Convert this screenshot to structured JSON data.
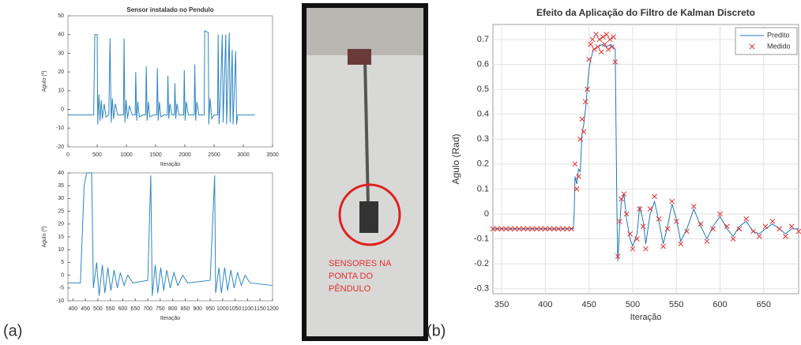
{
  "chart_data": [
    {
      "type": "line",
      "title": "Sensor instalado no Pendulo",
      "xlabel": "Iteração",
      "ylabel": "Agulo (º)",
      "xlim": [
        0,
        3500
      ],
      "xticks": [
        0,
        500,
        1000,
        1500,
        2000,
        2500,
        3000,
        3500
      ],
      "ylim": [
        -20,
        50
      ],
      "yticks": [
        -20,
        -10,
        0,
        10,
        20,
        30,
        40,
        50
      ],
      "grid": false,
      "series": [
        {
          "name": "Sensor",
          "color": "#2e86c1",
          "x": [
            0,
            440,
            460,
            500,
            510,
            530,
            550,
            570,
            590,
            620,
            650,
            700,
            720,
            740,
            760,
            780,
            810,
            850,
            950,
            960,
            975,
            995,
            1020,
            1050,
            1100,
            1150,
            1160,
            1175,
            1195,
            1220,
            1280,
            1330,
            1340,
            1355,
            1375,
            1400,
            1460,
            1520,
            1530,
            1545,
            1565,
            1590,
            1640,
            1700,
            1710,
            1725,
            1745,
            1780,
            1820,
            1830,
            1845,
            1865,
            1900,
            1980,
            1990,
            2005,
            2025,
            2060,
            2160,
            2170,
            2185,
            2205,
            2240,
            2330,
            2340,
            2400,
            2410,
            2430,
            2460,
            2500,
            2560,
            2570,
            2585,
            2605,
            2640,
            2655,
            2700,
            2715,
            2760,
            2775,
            2810,
            2825,
            2870,
            2885,
            2905,
            3200
          ],
          "values": [
            -3,
            -3,
            40,
            40,
            -8,
            8,
            -6,
            5,
            -5,
            3,
            -4,
            -3,
            38,
            -7,
            6,
            -5,
            3,
            -3,
            -3,
            38,
            -7,
            5,
            -5,
            2,
            -3,
            -3,
            20,
            -6,
            4,
            -4,
            -3,
            -3,
            23,
            -6,
            4,
            -4,
            -3,
            -3,
            22,
            -6,
            4,
            -4,
            -3,
            -3,
            18,
            -5,
            3,
            -3,
            -3,
            14,
            -5,
            3,
            -3,
            -3,
            21,
            -6,
            4,
            -3,
            -3,
            24,
            -6,
            4,
            -3,
            -3,
            42,
            41,
            -8,
            6,
            -5,
            -3,
            -3,
            40,
            -8,
            3,
            40,
            -7,
            40,
            -8,
            41,
            -7,
            32,
            -8,
            31,
            -8,
            -3,
            -3
          ]
        }
      ]
    },
    {
      "type": "line",
      "xlabel": "Iteração",
      "ylabel": "Agulo (º)",
      "xlim": [
        380,
        1200
      ],
      "xticks": [
        400,
        450,
        500,
        550,
        600,
        650,
        700,
        750,
        800,
        850,
        900,
        950,
        1000,
        1050,
        1100,
        1150,
        1200
      ],
      "ylim": [
        -10,
        40
      ],
      "yticks": [
        -10,
        -5,
        0,
        5,
        10,
        15,
        20,
        25,
        30,
        35,
        40
      ],
      "grid": false,
      "series": [
        {
          "name": "Sensor",
          "color": "#2e86c1",
          "x": [
            380,
            430,
            445,
            455,
            475,
            482,
            495,
            505,
            518,
            528,
            540,
            552,
            565,
            578,
            590,
            605,
            620,
            640,
            700,
            712,
            718,
            730,
            740,
            752,
            764,
            776,
            790,
            805,
            820,
            840,
            860,
            950,
            968,
            972,
            985,
            995,
            1008,
            1020,
            1033,
            1046,
            1060,
            1075,
            1090,
            1110,
            1200
          ],
          "values": [
            -3,
            -3,
            35,
            40,
            40,
            -5,
            5,
            -8,
            4,
            -7,
            3,
            -6,
            2,
            -5,
            1,
            -4,
            0,
            -3,
            -2,
            39,
            -8,
            4,
            -7,
            3,
            -6,
            2,
            -5,
            1,
            -4,
            0,
            -3,
            -2,
            39,
            -7,
            3,
            -7,
            3,
            -6,
            2,
            -5,
            1,
            -4,
            0,
            -3,
            -4
          ]
        }
      ]
    },
    {
      "type": "line",
      "title": "Efeito da Aplicação do Filtro de Kalman Discreto",
      "xlabel": "Iteração",
      "ylabel": "Agulo (Rad)",
      "xlim": [
        340,
        690
      ],
      "xticks": [
        350,
        400,
        450,
        500,
        550,
        600,
        650
      ],
      "ylim": [
        -0.32,
        0.76
      ],
      "yticks": [
        -0.3,
        -0.2,
        -0.1,
        0,
        0.1,
        0.2,
        0.3,
        0.4,
        0.5,
        0.6,
        0.7
      ],
      "grid": true,
      "legend": "upper right",
      "series": [
        {
          "name": "Predito",
          "color": "#1f77b4",
          "x": [
            340,
            432,
            433,
            434,
            436,
            438,
            440,
            442,
            444,
            446,
            448,
            450,
            452,
            455,
            460,
            465,
            470,
            475,
            480,
            482,
            483,
            485,
            487,
            490,
            493,
            497,
            500,
            505,
            508,
            512,
            515,
            520,
            525,
            530,
            535,
            540,
            545,
            550,
            555,
            562,
            570,
            578,
            585,
            592,
            600,
            608,
            615,
            622,
            630,
            638,
            645,
            652,
            660,
            668,
            675,
            682,
            690
          ],
          "values": [
            -0.06,
            -0.06,
            0.0,
            0.15,
            0.12,
            0.18,
            0.17,
            0.32,
            0.36,
            0.42,
            0.5,
            0.58,
            0.62,
            0.66,
            0.67,
            0.68,
            0.67,
            0.68,
            0.66,
            0.0,
            -0.19,
            -0.05,
            0.05,
            0.08,
            -0.02,
            -0.1,
            -0.13,
            -0.08,
            0.03,
            -0.03,
            -0.12,
            0.0,
            0.05,
            -0.03,
            -0.12,
            -0.05,
            0.04,
            -0.02,
            -0.11,
            -0.06,
            0.02,
            -0.05,
            -0.1,
            -0.05,
            -0.01,
            -0.06,
            -0.09,
            -0.05,
            -0.03,
            -0.07,
            -0.08,
            -0.06,
            -0.04,
            -0.06,
            -0.08,
            -0.06,
            -0.06
          ]
        },
        {
          "name": "Medido",
          "color": "#e03030",
          "marker": "x",
          "x": [
            340,
            345,
            350,
            355,
            360,
            365,
            370,
            375,
            380,
            385,
            390,
            395,
            400,
            405,
            410,
            415,
            420,
            425,
            430,
            434,
            436,
            438,
            440,
            442,
            444,
            446,
            448,
            450,
            452,
            454,
            456,
            458,
            460,
            462,
            464,
            466,
            468,
            470,
            472,
            474,
            476,
            478,
            480,
            483,
            485,
            487,
            490,
            493,
            497,
            500,
            505,
            508,
            512,
            515,
            520,
            525,
            530,
            535,
            540,
            545,
            550,
            555,
            562,
            570,
            578,
            585,
            592,
            600,
            608,
            615,
            622,
            630,
            638,
            645,
            652,
            660,
            668,
            675,
            682,
            690
          ],
          "values": [
            -0.06,
            -0.06,
            -0.06,
            -0.06,
            -0.06,
            -0.06,
            -0.06,
            -0.06,
            -0.06,
            -0.06,
            -0.06,
            -0.06,
            -0.06,
            -0.06,
            -0.06,
            -0.06,
            -0.06,
            -0.06,
            -0.06,
            0.2,
            0.1,
            0.15,
            0.3,
            0.38,
            0.33,
            0.45,
            0.5,
            0.62,
            0.68,
            0.7,
            0.66,
            0.72,
            0.67,
            0.7,
            0.65,
            0.71,
            0.68,
            0.72,
            0.66,
            0.7,
            0.67,
            0.71,
            0.61,
            -0.17,
            -0.03,
            0.06,
            0.08,
            0.0,
            -0.08,
            -0.14,
            -0.1,
            0.02,
            -0.05,
            -0.14,
            0.02,
            0.07,
            -0.02,
            -0.13,
            -0.06,
            0.05,
            -0.03,
            -0.12,
            -0.07,
            0.03,
            -0.04,
            -0.11,
            -0.06,
            0.0,
            -0.05,
            -0.1,
            -0.06,
            -0.02,
            -0.07,
            -0.09,
            -0.05,
            -0.03,
            -0.06,
            -0.09,
            -0.05,
            -0.07
          ]
        }
      ]
    }
  ],
  "photo": {
    "caption": [
      "SENSORES NA",
      "PONTA DO",
      "PÊNDULO"
    ]
  },
  "panel_labels": [
    "(a)",
    "(b)"
  ]
}
